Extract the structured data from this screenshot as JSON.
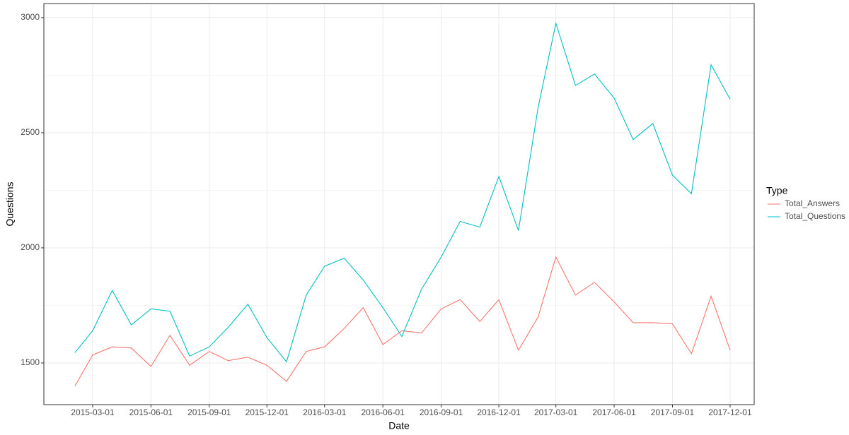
{
  "chart_data": {
    "type": "line",
    "x_label": "Date",
    "y_label": "Questions",
    "legend_title": "Type",
    "legend": "right",
    "x": [
      "2015-02-01",
      "2015-03-01",
      "2015-04-01",
      "2015-05-01",
      "2015-06-01",
      "2015-07-01",
      "2015-08-01",
      "2015-09-01",
      "2015-10-01",
      "2015-11-01",
      "2015-12-01",
      "2016-01-01",
      "2016-02-01",
      "2016-03-01",
      "2016-04-01",
      "2016-05-01",
      "2016-06-01",
      "2016-07-01",
      "2016-08-01",
      "2016-09-01",
      "2016-10-01",
      "2016-11-01",
      "2016-12-01",
      "2017-01-01",
      "2017-02-01",
      "2017-03-01",
      "2017-04-01",
      "2017-05-01",
      "2017-06-01",
      "2017-07-01",
      "2017-08-01",
      "2017-09-01",
      "2017-10-01",
      "2017-11-01",
      "2017-12-01"
    ],
    "series": [
      {
        "name": "Total_Answers",
        "color": "#f8766d",
        "values": [
          1400,
          1535,
          1570,
          1565,
          1485,
          1620,
          1490,
          1550,
          1510,
          1525,
          1490,
          1420,
          1550,
          1570,
          1650,
          1740,
          1580,
          1640,
          1630,
          1735,
          1775,
          1680,
          1775,
          1555,
          1700,
          1960,
          1795,
          1850,
          1765,
          1675,
          1675,
          1670,
          1540,
          1790,
          1555
        ]
      },
      {
        "name": "Total_Questions",
        "color": "#00bfc4",
        "values": [
          1545,
          1640,
          1815,
          1665,
          1735,
          1725,
          1530,
          1570,
          1655,
          1755,
          1610,
          1505,
          1795,
          1920,
          1955,
          1860,
          1740,
          1615,
          1820,
          1960,
          2115,
          2090,
          2310,
          2075,
          2610,
          2975,
          2705,
          2755,
          2650,
          2470,
          2540,
          2315,
          2235,
          2795,
          2645
        ]
      }
    ],
    "xlim": [
      "2014-12-14",
      "2018-01-08"
    ],
    "xticks": [
      "2015-03-01",
      "2015-06-01",
      "2015-09-01",
      "2015-12-01",
      "2016-03-01",
      "2016-06-01",
      "2016-09-01",
      "2016-12-01",
      "2017-03-01",
      "2017-06-01",
      "2017-09-01",
      "2017-12-01"
    ],
    "ylim": [
      1319,
      3061
    ],
    "yticks": [
      1500,
      2000,
      2500,
      3000
    ],
    "y_minor_ticks": [
      1750,
      2250,
      2750
    ],
    "grid": true
  }
}
